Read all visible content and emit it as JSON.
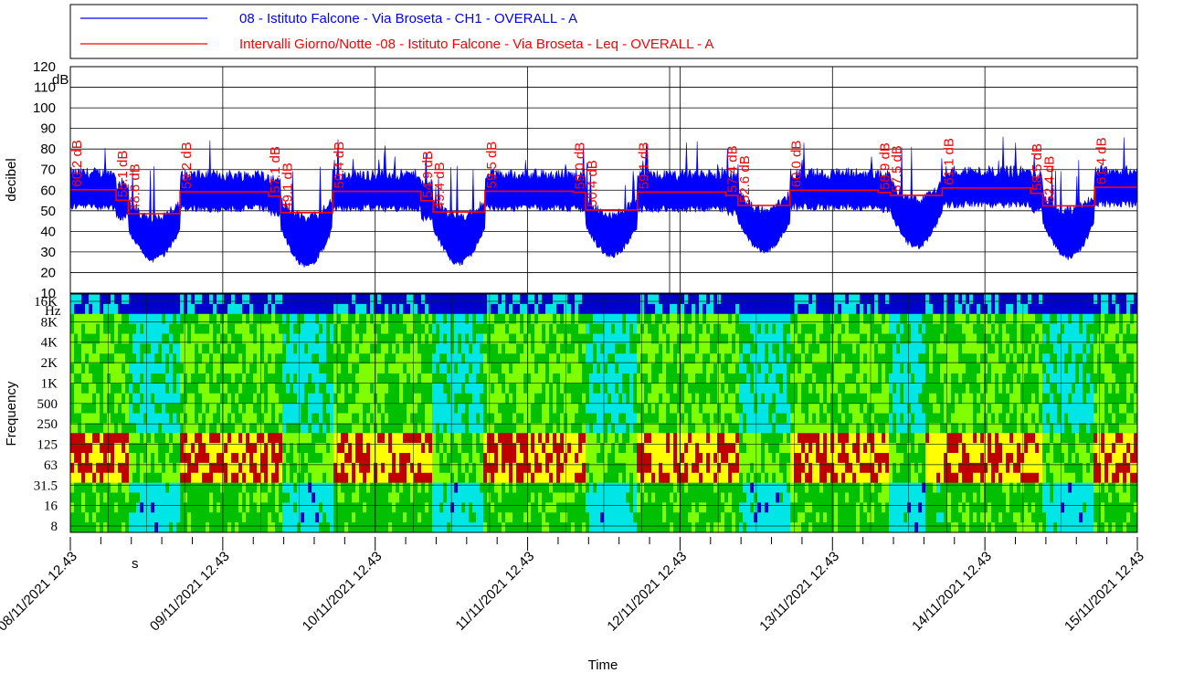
{
  "legend": {
    "entries": [
      {
        "label": "08 - Istituto Falcone - Via Broseta - CH1 - OVERALL - A",
        "color": "#0000ff"
      },
      {
        "label": "Intervalli Giorno/Notte -08 - Istituto Falcone - Via Broseta - Leq - OVERALL - A",
        "color": "#ff0000"
      }
    ]
  },
  "chart_data": [
    {
      "type": "line",
      "panel": "level",
      "ylabel": "decibel",
      "yunit": "dB",
      "ylim": [
        10,
        120
      ],
      "yticks": [
        10,
        20,
        30,
        40,
        50,
        60,
        70,
        80,
        90,
        100,
        110,
        120
      ],
      "grid": true,
      "x_range_days": [
        "08/11/2021 12.43",
        "15/11/2021 12.43"
      ],
      "series": [
        {
          "name": "08 - Istituto Falcone - Via Broseta - CH1 - OVERALL - A",
          "color": "#0000ff",
          "pattern": "day ~55-70 dB with spikes to ~85 dB; night dips to ~25-35 dB",
          "night_minimums_db": [
            28,
            25,
            26,
            30,
            32,
            34,
            29
          ]
        },
        {
          "name": "Intervalli Giorno/Notte -08 - Istituto Falcone - Via Broseta - Leq - OVERALL - A",
          "color": "#ff0000",
          "segments": [
            {
              "start_day": 0.0,
              "end_day": 0.3,
              "value": 60.2,
              "label": "60.2 dB"
            },
            {
              "start_day": 0.3,
              "end_day": 0.38,
              "value": 55.1,
              "label": "55.1 dB"
            },
            {
              "start_day": 0.38,
              "end_day": 0.72,
              "value": 48.6,
              "label": "48.6 dB"
            },
            {
              "start_day": 0.72,
              "end_day": 1.3,
              "value": 59.2,
              "label": "59.2 dB"
            },
            {
              "start_day": 1.3,
              "end_day": 1.38,
              "value": 57.1,
              "label": "57.1 dB"
            },
            {
              "start_day": 1.38,
              "end_day": 1.72,
              "value": 49.1,
              "label": "49.1 dB"
            },
            {
              "start_day": 1.72,
              "end_day": 2.3,
              "value": 59.4,
              "label": "59.4 dB"
            },
            {
              "start_day": 2.3,
              "end_day": 2.38,
              "value": 54.9,
              "label": "54.9 dB"
            },
            {
              "start_day": 2.38,
              "end_day": 2.72,
              "value": 49.4,
              "label": "49.4 dB"
            },
            {
              "start_day": 2.72,
              "end_day": 3.3,
              "value": 59.5,
              "label": "59.5 dB"
            },
            {
              "start_day": 3.3,
              "end_day": 3.38,
              "value": 59.0,
              "label": "59.0 dB"
            },
            {
              "start_day": 3.38,
              "end_day": 3.72,
              "value": 50.4,
              "label": "50.4 dB"
            },
            {
              "start_day": 3.72,
              "end_day": 4.3,
              "value": 59.1,
              "label": "59.1 dB"
            },
            {
              "start_day": 4.3,
              "end_day": 4.38,
              "value": 57.4,
              "label": "57.4 dB"
            },
            {
              "start_day": 4.38,
              "end_day": 4.72,
              "value": 52.6,
              "label": "52.6 dB"
            },
            {
              "start_day": 4.72,
              "end_day": 5.3,
              "value": 60.0,
              "label": "60.0 dB"
            },
            {
              "start_day": 5.3,
              "end_day": 5.38,
              "value": 58.9,
              "label": "58.9 dB"
            },
            {
              "start_day": 5.38,
              "end_day": 5.72,
              "value": 57.5,
              "label": "57.5 dB"
            },
            {
              "start_day": 5.72,
              "end_day": 6.3,
              "value": 61.1,
              "label": "61.1 dB"
            },
            {
              "start_day": 6.3,
              "end_day": 6.38,
              "value": 58.5,
              "label": "58.5 dB"
            },
            {
              "start_day": 6.38,
              "end_day": 6.72,
              "value": 52.4,
              "label": "52.4 dB"
            },
            {
              "start_day": 6.72,
              "end_day": 7.0,
              "value": 61.4,
              "label": "61.4 dB"
            }
          ]
        }
      ]
    },
    {
      "type": "heatmap",
      "panel": "spectrogram",
      "ylabel": "Frequency",
      "yunit": "Hz",
      "yticks": [
        "16K",
        "8K",
        "4K",
        "2K",
        "1K",
        "500",
        "250",
        "125",
        "63",
        "31.5",
        "16",
        "8"
      ],
      "xlabel": "Time",
      "xunit": "s",
      "xticks": [
        "08/11/2021 12.43",
        "09/11/2021 12.43",
        "10/11/2021 12.43",
        "11/11/2021 12.43",
        "12/11/2021 12.43",
        "13/11/2021 12.43",
        "14/11/2021 12.43",
        "15/11/2021 12.43"
      ],
      "colors": {
        "low": "#0000cc",
        "mid_low": "#00e6e6",
        "mid": "#00c000",
        "mid_high": "#80ff00",
        "high": "#ffff00",
        "peak": "#c00000"
      }
    }
  ]
}
